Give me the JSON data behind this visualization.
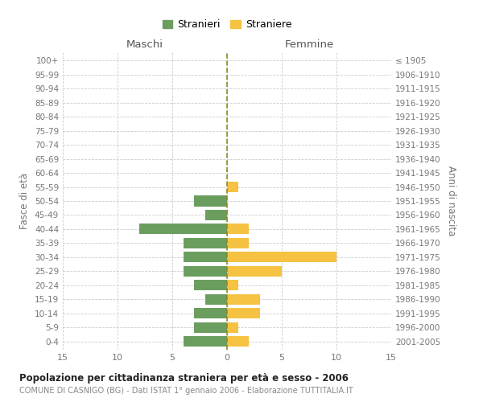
{
  "age_groups": [
    "0-4",
    "5-9",
    "10-14",
    "15-19",
    "20-24",
    "25-29",
    "30-34",
    "35-39",
    "40-44",
    "45-49",
    "50-54",
    "55-59",
    "60-64",
    "65-69",
    "70-74",
    "75-79",
    "80-84",
    "85-89",
    "90-94",
    "95-99",
    "100+"
  ],
  "birth_years": [
    "2001-2005",
    "1996-2000",
    "1991-1995",
    "1986-1990",
    "1981-1985",
    "1976-1980",
    "1971-1975",
    "1966-1970",
    "1961-1965",
    "1956-1960",
    "1951-1955",
    "1946-1950",
    "1941-1945",
    "1936-1940",
    "1931-1935",
    "1926-1930",
    "1921-1925",
    "1916-1920",
    "1911-1915",
    "1906-1910",
    "≤ 1905"
  ],
  "males": [
    4,
    3,
    3,
    2,
    3,
    4,
    4,
    4,
    8,
    2,
    3,
    0,
    0,
    0,
    0,
    0,
    0,
    0,
    0,
    0,
    0
  ],
  "females": [
    2,
    1,
    3,
    3,
    1,
    5,
    10,
    2,
    2,
    0,
    0,
    1,
    0,
    0,
    0,
    0,
    0,
    0,
    0,
    0,
    0
  ],
  "male_color": "#6b9e5e",
  "female_color": "#f5c242",
  "bar_height": 0.75,
  "xlim": 15,
  "title": "Popolazione per cittadinanza straniera per età e sesso - 2006",
  "subtitle": "COMUNE DI CASNIGO (BG) - Dati ISTAT 1° gennaio 2006 - Elaborazione TUTTITALIA.IT",
  "ylabel_left": "Fasce di età",
  "ylabel_right": "Anni di nascita",
  "xlabel_maschi": "Maschi",
  "xlabel_femmine": "Femmine",
  "legend_stranieri": "Stranieri",
  "legend_straniere": "Straniere",
  "bg_color": "#ffffff",
  "grid_color": "#cccccc",
  "label_color": "#888888",
  "axis_label_color": "#777777",
  "vline_color": "#8b8b2b",
  "title_color": "#222222",
  "maschi_femmine_color": "#555555"
}
